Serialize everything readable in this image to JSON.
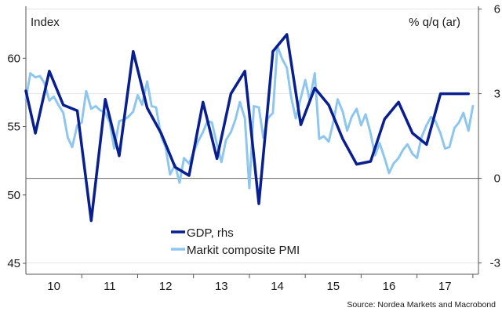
{
  "chart_data": {
    "type": "line",
    "title": "",
    "left_axis": {
      "title": "Index",
      "range": [
        44.2,
        63.8
      ],
      "ticks": [
        45,
        50,
        55,
        60
      ]
    },
    "right_axis": {
      "title": "% q/q (ar)",
      "range": [
        -3.4,
        6.1
      ],
      "ticks": [
        -3,
        0,
        3,
        6
      ]
    },
    "x_axis": {
      "range": [
        2009.5,
        2017.6
      ],
      "labels": [
        "10",
        "11",
        "12",
        "13",
        "14",
        "15",
        "16",
        "17"
      ],
      "label_positions": [
        2010,
        2011,
        2012,
        2013,
        2014,
        2015,
        2016,
        2017
      ]
    },
    "reference_line": {
      "axis": "right",
      "value": 0
    },
    "series": [
      {
        "name": "GDP, rhs",
        "axis": "right",
        "color": "#0a1f8f",
        "x": [
          2009.5,
          2009.67,
          2009.92,
          2010.17,
          2010.42,
          2010.67,
          2010.92,
          2011.17,
          2011.42,
          2011.67,
          2011.92,
          2012.17,
          2012.42,
          2012.67,
          2012.92,
          2013.17,
          2013.42,
          2013.67,
          2013.92,
          2014.17,
          2014.42,
          2014.67,
          2014.92,
          2015.17,
          2015.42,
          2015.67,
          2015.92,
          2016.17,
          2016.42,
          2016.67,
          2016.92,
          2017.17,
          2017.42
        ],
        "values": [
          3.1,
          1.6,
          3.8,
          2.6,
          2.4,
          -1.5,
          2.8,
          0.8,
          4.5,
          2.5,
          1.6,
          0.4,
          0.1,
          2.7,
          0.7,
          3.0,
          3.8,
          -0.9,
          4.5,
          5.1,
          1.9,
          3.2,
          2.6,
          1.4,
          0.5,
          0.6,
          2.1,
          2.7,
          1.6,
          1.2,
          3.0,
          3.0,
          3.0
        ]
      },
      {
        "name": "Markit composite PMI",
        "axis": "left",
        "color": "#8ec6ee",
        "x": [
          2009.5,
          2009.58,
          2009.67,
          2009.75,
          2009.83,
          2009.92,
          2010.0,
          2010.08,
          2010.17,
          2010.25,
          2010.33,
          2010.42,
          2010.5,
          2010.58,
          2010.67,
          2010.75,
          2010.83,
          2010.92,
          2011.0,
          2011.08,
          2011.17,
          2011.25,
          2011.33,
          2011.42,
          2011.5,
          2011.58,
          2011.67,
          2011.75,
          2011.83,
          2011.92,
          2012.0,
          2012.08,
          2012.17,
          2012.25,
          2012.33,
          2012.42,
          2012.5,
          2012.58,
          2012.67,
          2012.75,
          2012.83,
          2012.92,
          2013.0,
          2013.08,
          2013.17,
          2013.25,
          2013.33,
          2013.42,
          2013.5,
          2013.58,
          2013.67,
          2013.75,
          2013.83,
          2013.92,
          2014.0,
          2014.08,
          2014.17,
          2014.25,
          2014.33,
          2014.42,
          2014.5,
          2014.58,
          2014.67,
          2014.75,
          2014.83,
          2014.92,
          2015.0,
          2015.08,
          2015.17,
          2015.25,
          2015.33,
          2015.42,
          2015.5,
          2015.58,
          2015.67,
          2015.75,
          2015.83,
          2015.92,
          2016.0,
          2016.08,
          2016.17,
          2016.25,
          2016.33,
          2016.42,
          2016.5,
          2016.58,
          2016.67,
          2016.75,
          2016.83,
          2016.92,
          2017.0,
          2017.08,
          2017.17,
          2017.25,
          2017.33,
          2017.42,
          2017.5
        ],
        "values": [
          57.0,
          58.9,
          58.6,
          58.7,
          58.2,
          56.9,
          57.2,
          56.6,
          56.0,
          54.2,
          53.5,
          55.1,
          55.3,
          57.6,
          56.3,
          56.5,
          56.2,
          56.0,
          55.3,
          53.4,
          55.4,
          55.5,
          55.7,
          56.1,
          57.3,
          56.6,
          58.3,
          56.5,
          56.4,
          54.3,
          53.5,
          51.5,
          52.2,
          50.9,
          52.7,
          52.3,
          53.1,
          53.9,
          54.6,
          55.4,
          55.3,
          53.7,
          52.4,
          54.0,
          54.6,
          55.5,
          56.8,
          55.6,
          50.5,
          56.5,
          56.4,
          54.2,
          55.6,
          56.0,
          60.9,
          60.0,
          59.3,
          57.1,
          55.6,
          57.1,
          58.4,
          56.9,
          58.9,
          54.1,
          54.3,
          53.9,
          55.3,
          57.0,
          56.1,
          54.7,
          55.7,
          56.3,
          55.1,
          55.9,
          54.5,
          52.9,
          53.8,
          52.7,
          51.6,
          52.3,
          52.7,
          53.3,
          53.7,
          53.0,
          52.7,
          54.2,
          55.1,
          55.7,
          55.4,
          54.5,
          53.4,
          53.5,
          54.9,
          55.3,
          56.0,
          54.7,
          56.5
        ]
      }
    ],
    "legend": {
      "position": "bottom-center",
      "entries": [
        "GDP, rhs",
        "Markit composite PMI"
      ]
    },
    "source": "Source: Nordea Markets and Macrobond"
  }
}
